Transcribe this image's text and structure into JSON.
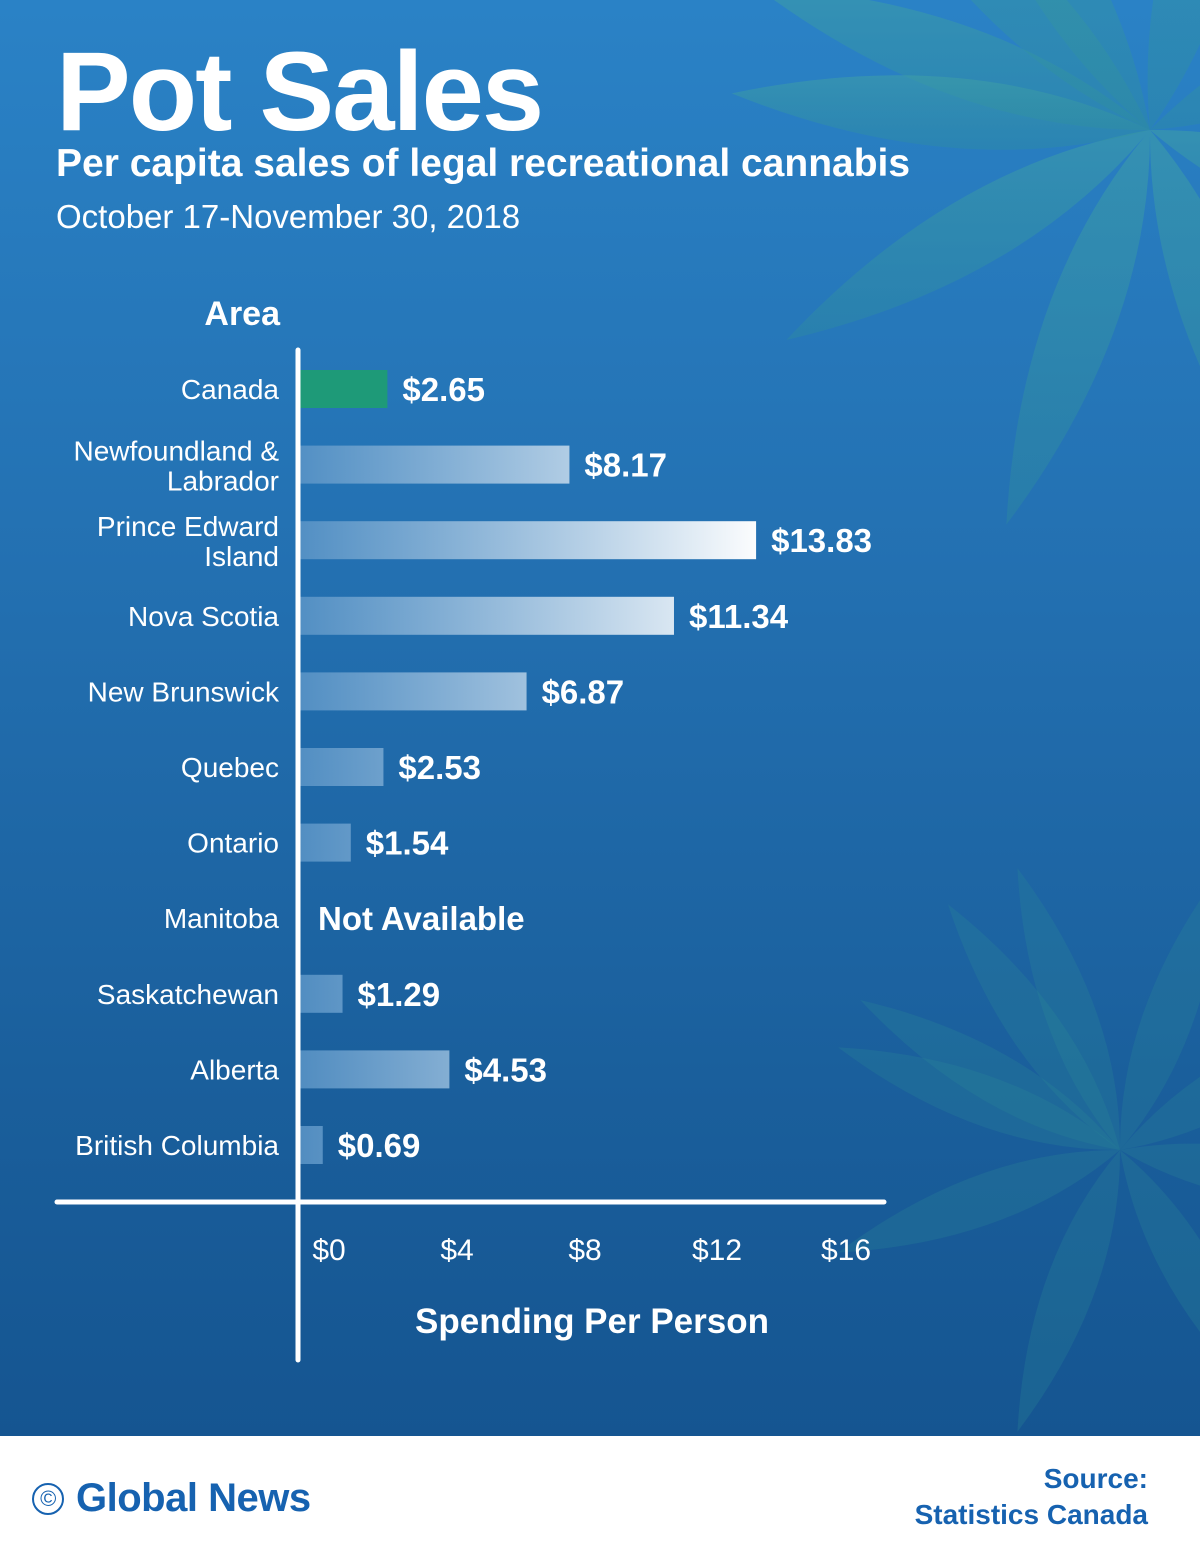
{
  "title": "Pot Sales",
  "subtitle": "Per capita sales of legal recreational cannabis",
  "date_range": "October 17-November 30, 2018",
  "chart_data": {
    "type": "bar",
    "orientation": "horizontal",
    "y_header": "Area",
    "xlabel": "Spending Per Person",
    "xlim": [
      0,
      16
    ],
    "x_ticks": [
      "$0",
      "$4",
      "$8",
      "$12",
      "$16"
    ],
    "tick_values": [
      0,
      4,
      8,
      12,
      16
    ],
    "categories": [
      [
        "Canada"
      ],
      [
        "Newfoundland &",
        "Labrador"
      ],
      [
        "Prince Edward",
        "Island"
      ],
      [
        "Nova Scotia"
      ],
      [
        "New Brunswick"
      ],
      [
        "Quebec"
      ],
      [
        "Ontario"
      ],
      [
        "Manitoba"
      ],
      [
        "Saskatchewan"
      ],
      [
        "Alberta"
      ],
      [
        "British Columbia"
      ]
    ],
    "values": [
      2.65,
      8.17,
      13.83,
      11.34,
      6.87,
      2.53,
      1.54,
      null,
      1.29,
      4.53,
      0.69
    ],
    "value_labels": [
      "$2.65",
      "$8.17",
      "$13.83",
      "$11.34",
      "$6.87",
      "$2.53",
      "$1.54",
      "Not Available",
      "$1.29",
      "$4.53",
      "$0.69"
    ],
    "highlight_category": "Canada",
    "highlight_color": "#1e9a78",
    "bar_color_start": "#5b95c7",
    "bar_color_end": "#ffffff",
    "grid": false
  },
  "footer": {
    "brand_icon": "©",
    "brand": "Global News",
    "source_label": "Source:",
    "source_name": "Statistics Canada"
  }
}
